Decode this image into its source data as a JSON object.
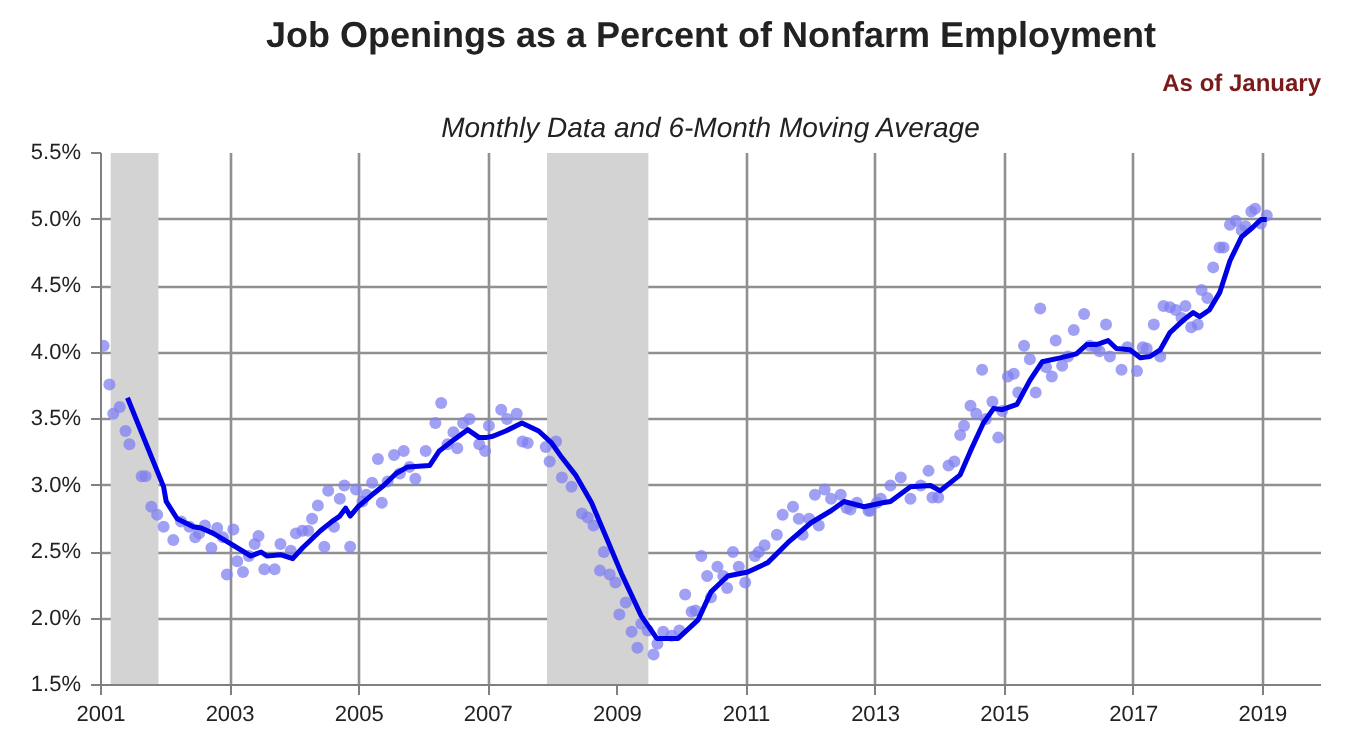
{
  "chart_data": {
    "type": "scatter",
    "title": "Job Openings as a Percent of Nonfarm Employment",
    "subtitle": "Monthly Data and 6-Month Moving Average",
    "annotations": [
      "As of January"
    ],
    "xlim": [
      2001,
      2019.9
    ],
    "xticks": [
      2001,
      2003,
      2005,
      2007,
      2009,
      2011,
      2013,
      2015,
      2017,
      2019
    ],
    "ylim": [
      1.5,
      5.5
    ],
    "yticks": [
      {
        "value": 1.5,
        "label": "1.5%"
      },
      {
        "value": 2.0,
        "label": "2.0%"
      },
      {
        "value": 2.5,
        "label": "2.5%"
      },
      {
        "value": 3.0,
        "label": "3.0%"
      },
      {
        "value": 3.5,
        "label": "3.5%"
      },
      {
        "value": 4.0,
        "label": "4.0%"
      },
      {
        "value": 4.5,
        "label": "4.5%"
      },
      {
        "value": 5.0,
        "label": "5.0%"
      },
      {
        "value": 5.5,
        "label": "5.5%"
      }
    ],
    "grid": true,
    "bands": [
      {
        "axis": "x",
        "from": 2001.15,
        "to": 2001.89,
        "color": "#d3d3d3"
      },
      {
        "axis": "x",
        "from": 2007.91,
        "to": 2009.48,
        "color": "#d3d3d3"
      }
    ],
    "series": [
      {
        "marker": "circle",
        "color": "#8080f0",
        "x": [
          2001.04,
          2001.13,
          2001.19,
          2001.29,
          2001.38,
          2001.44,
          2001.63,
          2001.69,
          2001.78,
          2001.87,
          2001.97,
          2002.12,
          2002.24,
          2002.37,
          2002.46,
          2002.52,
          2002.61,
          2002.71,
          2002.8,
          2002.89,
          2002.95,
          2003.05,
          2003.11,
          2003.2,
          2003.29,
          2003.38,
          2003.44,
          2003.53,
          2003.69,
          2003.78,
          2003.94,
          2004.02,
          2004.12,
          2004.21,
          2004.27,
          2004.36,
          2004.46,
          2004.52,
          2004.61,
          2004.7,
          2004.77,
          2004.86,
          2004.95,
          2005.05,
          2005.11,
          2005.2,
          2005.29,
          2005.35,
          2005.44,
          2005.54,
          2005.63,
          2005.69,
          2005.78,
          2005.87,
          2006.03,
          2006.18,
          2006.27,
          2006.37,
          2006.46,
          2006.52,
          2006.61,
          2006.71,
          2006.86,
          2006.95,
          2007.01,
          2007.2,
          2007.29,
          2007.44,
          2007.53,
          2007.61,
          2007.89,
          2007.95,
          2008.05,
          2008.14,
          2008.29,
          2008.45,
          2008.54,
          2008.63,
          2008.73,
          2008.79,
          2008.88,
          2008.97,
          2009.03,
          2009.13,
          2009.22,
          2009.31,
          2009.37,
          2009.47,
          2009.56,
          2009.62,
          2009.71,
          2009.84,
          2009.96,
          2010.05,
          2010.15,
          2010.21,
          2010.3,
          2010.39,
          2010.45,
          2010.55,
          2010.64,
          2010.7,
          2010.79,
          2010.88,
          2010.98,
          2011.13,
          2011.19,
          2011.28,
          2011.47,
          2011.56,
          2011.72,
          2011.81,
          2011.87,
          2011.97,
          2012.06,
          2012.12,
          2012.21,
          2012.31,
          2012.46,
          2012.55,
          2012.61,
          2012.71,
          2012.89,
          2012.92,
          2013.02,
          2013.08,
          2013.23,
          2013.39,
          2013.54,
          2013.7,
          2013.82,
          2013.88,
          2013.97,
          2014.13,
          2014.22,
          2014.31,
          2014.37,
          2014.47,
          2014.56,
          2014.65,
          2014.71,
          2014.81,
          2014.9,
          2014.96,
          2015.05,
          2015.14,
          2015.21,
          2015.3,
          2015.39,
          2015.48,
          2015.55,
          2015.64,
          2015.73,
          2015.79,
          2015.89,
          2015.98,
          2016.07,
          2016.23,
          2016.32,
          2016.41,
          2016.47,
          2016.57,
          2016.63,
          2016.81,
          2016.9,
          2017.05,
          2017.14,
          2017.2,
          2017.31,
          2017.41,
          2017.46,
          2017.56,
          2017.65,
          2017.74,
          2017.8,
          2017.89,
          2017.99,
          2018.05,
          2018.14,
          2018.23,
          2018.33,
          2018.39,
          2018.49,
          2018.58,
          2018.67,
          2018.73,
          2018.82,
          2018.88,
          2018.97,
          2019.06
        ],
        "values": [
          4.05,
          3.76,
          3.54,
          3.59,
          3.41,
          3.31,
          3.07,
          3.07,
          2.84,
          2.78,
          2.69,
          2.59,
          2.73,
          2.69,
          2.61,
          2.64,
          2.7,
          2.53,
          2.68,
          2.61,
          2.33,
          2.67,
          2.43,
          2.35,
          2.47,
          2.56,
          2.62,
          2.37,
          2.37,
          2.56,
          2.51,
          2.64,
          2.66,
          2.66,
          2.75,
          2.85,
          2.54,
          2.96,
          2.69,
          2.9,
          3.0,
          2.54,
          2.97,
          2.88,
          2.93,
          3.02,
          3.2,
          2.87,
          3.03,
          3.23,
          3.09,
          3.26,
          3.14,
          3.05,
          3.26,
          3.47,
          3.62,
          3.31,
          3.4,
          3.28,
          3.47,
          3.5,
          3.31,
          3.26,
          3.45,
          3.57,
          3.5,
          3.54,
          3.33,
          3.32,
          3.29,
          3.18,
          3.33,
          3.06,
          2.99,
          2.79,
          2.76,
          2.7,
          2.36,
          2.5,
          2.33,
          2.27,
          2.03,
          2.12,
          1.9,
          1.78,
          1.96,
          1.91,
          1.73,
          1.81,
          1.9,
          1.87,
          1.91,
          2.18,
          2.05,
          2.06,
          2.47,
          2.32,
          2.16,
          2.39,
          2.32,
          2.23,
          2.5,
          2.39,
          2.27,
          2.47,
          2.5,
          2.55,
          2.63,
          2.78,
          2.84,
          2.75,
          2.63,
          2.75,
          2.93,
          2.7,
          2.97,
          2.9,
          2.93,
          2.83,
          2.82,
          2.87,
          2.81,
          2.81,
          2.87,
          2.9,
          3.0,
          3.06,
          2.9,
          3.0,
          3.11,
          2.91,
          2.91,
          3.15,
          3.18,
          3.38,
          3.45,
          3.6,
          3.54,
          3.87,
          3.5,
          3.63,
          3.36,
          3.56,
          3.82,
          3.84,
          3.7,
          4.05,
          3.95,
          3.7,
          4.33,
          3.89,
          3.82,
          4.09,
          3.9,
          3.97,
          4.17,
          4.29,
          4.05,
          4.04,
          4.01,
          4.21,
          3.97,
          3.87,
          4.04,
          3.86,
          4.04,
          4.03,
          4.21,
          3.97,
          4.35,
          4.34,
          4.32,
          4.26,
          4.35,
          4.19,
          4.21,
          4.47,
          4.41,
          4.64,
          4.79,
          4.79,
          4.96,
          4.99,
          4.92,
          4.95,
          5.06,
          5.08,
          4.97,
          5.03
        ]
      },
      {
        "type": "line",
        "line_style": "solid",
        "color": "#0000e6",
        "x": [
          2001.41,
          2001.97,
          2002.01,
          2002.18,
          2002.43,
          2002.55,
          2002.74,
          2002.98,
          2003.32,
          2003.48,
          2003.57,
          2003.78,
          2003.97,
          2004.12,
          2004.4,
          2004.58,
          2004.7,
          2004.79,
          2004.86,
          2004.98,
          2005.2,
          2005.38,
          2005.57,
          2005.75,
          2006.09,
          2006.24,
          2006.43,
          2006.68,
          2006.86,
          2006.96,
          2007.07,
          2007.27,
          2007.52,
          2007.78,
          2007.98,
          2008.14,
          2008.35,
          2008.6,
          2008.81,
          2009.07,
          2009.37,
          2009.61,
          2009.94,
          2010.25,
          2010.45,
          2010.71,
          2011.02,
          2011.33,
          2011.64,
          2012.0,
          2012.31,
          2012.51,
          2012.82,
          2013.11,
          2013.23,
          2013.54,
          2013.85,
          2014.0,
          2014.31,
          2014.47,
          2014.67,
          2014.83,
          2014.96,
          2015.19,
          2015.39,
          2015.58,
          2015.86,
          2016.11,
          2016.27,
          2016.43,
          2016.6,
          2016.73,
          2016.94,
          2017.1,
          2017.25,
          2017.41,
          2017.56,
          2017.76,
          2017.92,
          2018.02,
          2018.17,
          2018.33,
          2018.49,
          2018.67,
          2018.84,
          2018.97,
          2019.06
        ],
        "values": [
          3.66,
          2.99,
          2.88,
          2.75,
          2.69,
          2.68,
          2.64,
          2.57,
          2.47,
          2.5,
          2.47,
          2.48,
          2.45,
          2.53,
          2.66,
          2.73,
          2.77,
          2.83,
          2.77,
          2.84,
          2.93,
          3.0,
          3.09,
          3.14,
          3.15,
          3.26,
          3.33,
          3.42,
          3.36,
          3.36,
          3.37,
          3.41,
          3.47,
          3.41,
          3.32,
          3.21,
          3.08,
          2.87,
          2.63,
          2.33,
          2.02,
          1.85,
          1.85,
          1.99,
          2.2,
          2.32,
          2.35,
          2.42,
          2.57,
          2.72,
          2.81,
          2.88,
          2.84,
          2.87,
          2.88,
          2.99,
          3.0,
          2.96,
          3.08,
          3.26,
          3.47,
          3.58,
          3.57,
          3.61,
          3.79,
          3.93,
          3.96,
          3.99,
          4.06,
          4.06,
          4.09,
          4.03,
          4.02,
          3.96,
          3.97,
          4.02,
          4.15,
          4.24,
          4.3,
          4.27,
          4.32,
          4.45,
          4.69,
          4.87,
          4.94,
          5.0,
          5.0
        ]
      }
    ]
  }
}
